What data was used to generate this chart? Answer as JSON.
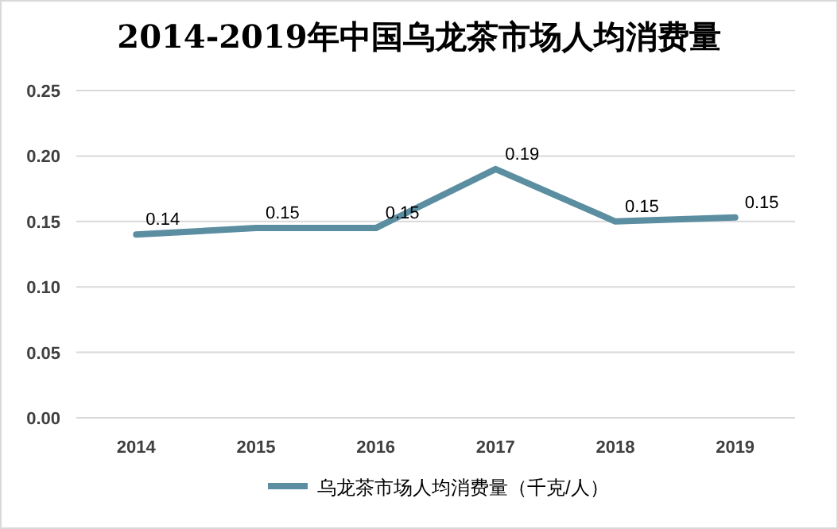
{
  "chart_data": {
    "type": "line",
    "title": "2014-2019年中国乌龙茶市场人均消费量",
    "categories": [
      "2014",
      "2015",
      "2016",
      "2017",
      "2018",
      "2019"
    ],
    "series": [
      {
        "name": "乌龙茶市场人均消费量（千克/人）",
        "color": "#5b8ea1",
        "values": [
          0.14,
          0.145,
          0.145,
          0.19,
          0.15,
          0.153
        ],
        "value_labels": [
          "0.14",
          "0.15",
          "0.15",
          "0.19",
          "0.15",
          "0.15"
        ]
      }
    ],
    "ylim": [
      0,
      0.25
    ],
    "yticks": [
      {
        "value": 0,
        "label": "0.00"
      },
      {
        "value": 0.05,
        "label": "0.05"
      },
      {
        "value": 0.1,
        "label": "0.10"
      },
      {
        "value": 0.15,
        "label": "0.15"
      },
      {
        "value": 0.2,
        "label": "0.20"
      },
      {
        "value": 0.25,
        "label": "0.25"
      }
    ],
    "grid": "y",
    "legend": "bottom",
    "marker": "none",
    "line_style": "solid"
  }
}
